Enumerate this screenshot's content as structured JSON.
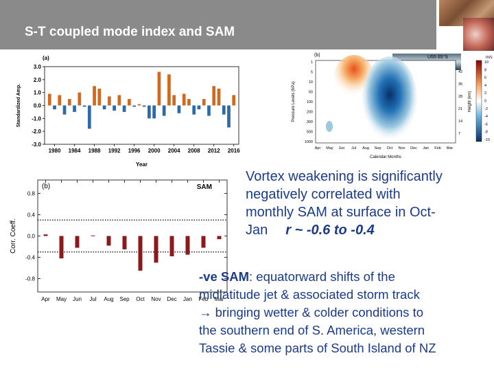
{
  "slide": {
    "title": "S-T coupled mode index and SAM",
    "text1": [
      "Vortex weakening is significantly",
      "negatively correlated with",
      "monthly SAM at surface in Oct-",
      "Jan"
    ],
    "text1_r": "r ~ -0.6 to -0.4",
    "text2_lead": "-ve SAM",
    "text2": [
      ": equatorward shifts of the",
      "midlatitude jet & associated storm track",
      "→ bringing wetter & colder conditions to",
      "the southern end of S. America, western",
      "Tassie & some parts of South Island of NZ"
    ]
  },
  "figure_c": {
    "panel": "(b)",
    "label": "U55 65°S",
    "y_label": "Pressure Levels (hPa)",
    "y2_label": "Height (km)",
    "x_label": "Calendar Months",
    "unit": "m/s",
    "months": [
      "Apr",
      "May",
      "Jun",
      "Jul",
      "Aug",
      "Sep",
      "Oct",
      "Nov",
      "Dec",
      "Jan",
      "Feb",
      "Mar"
    ],
    "pressure_ticks": [
      "1",
      "5",
      "10",
      "50",
      "100",
      "200",
      "300",
      "500",
      "1000"
    ],
    "height_ticks": [
      "42",
      "35",
      "28",
      "21",
      "14",
      "7"
    ],
    "colorbar_ticks": [
      "10",
      "8",
      "6",
      "4",
      "2",
      "0",
      "-2",
      "-4",
      "-6",
      "-8",
      "-10"
    ]
  },
  "chart_data": [
    {
      "type": "bar",
      "title": "(a)",
      "x_label": "Year",
      "y_label": "Standardized Amp.",
      "x": [
        1979,
        1980,
        1981,
        1982,
        1983,
        1984,
        1985,
        1986,
        1987,
        1988,
        1989,
        1990,
        1991,
        1992,
        1993,
        1994,
        1995,
        1996,
        1997,
        1998,
        1999,
        2000,
        2001,
        2002,
        2003,
        2004,
        2005,
        2006,
        2007,
        2008,
        2009,
        2010,
        2011,
        2012,
        2013,
        2014,
        2015,
        2016
      ],
      "values": [
        0.9,
        -0.3,
        0.8,
        -0.7,
        0.5,
        -0.5,
        1.0,
        -0.1,
        -1.8,
        1.5,
        1.3,
        -0.3,
        0.7,
        -0.4,
        0.8,
        -0.5,
        0.5,
        -0.1,
        0.1,
        -0.1,
        -1.0,
        -1.0,
        2.6,
        -0.8,
        2.4,
        0.8,
        -0.6,
        0.9,
        0.5,
        -0.7,
        -0.3,
        0.5,
        -0.8,
        1.5,
        1.3,
        -0.7,
        -1.7,
        0.8
      ],
      "pos_color": "#d2691e",
      "neg_color": "#2e6aa8",
      "xlim": [
        1978,
        2017
      ],
      "xticks": [
        1980,
        1984,
        1988,
        1992,
        1996,
        2000,
        2004,
        2008,
        2012,
        2016
      ],
      "ylim": [
        -3,
        3
      ],
      "yticks": [
        {
          "value": 3,
          "label": "3.0"
        },
        {
          "value": 2,
          "label": "2.0"
        },
        {
          "value": 1,
          "label": "1.0"
        },
        {
          "value": 0,
          "label": "0.0"
        },
        {
          "value": -1,
          "label": "-1.0"
        },
        {
          "value": -2,
          "label": "-2.0"
        },
        {
          "value": -3,
          "label": "-3.0"
        }
      ]
    },
    {
      "type": "bar",
      "title": "(b)",
      "legend": "SAM",
      "y_label": "Corr. Coeff.",
      "categories": [
        "Apr",
        "May",
        "Jun",
        "Jul",
        "Aug",
        "Sep",
        "Oct",
        "Nov",
        "Dec",
        "Jan",
        "Feb",
        "Mar"
      ],
      "values": [
        0.03,
        -0.42,
        -0.22,
        0.01,
        -0.18,
        -0.25,
        -0.65,
        -0.5,
        -0.38,
        -0.35,
        -0.22,
        -0.06
      ],
      "color": "#8b1a1a",
      "ylim": [
        -1.05,
        1.05
      ],
      "yticks": [
        0.8,
        0.4,
        {
          "value": 0,
          "label": "0.0"
        },
        -0.4,
        -0.8
      ],
      "hlines": [
        0.3,
        -0.3
      ]
    }
  ]
}
